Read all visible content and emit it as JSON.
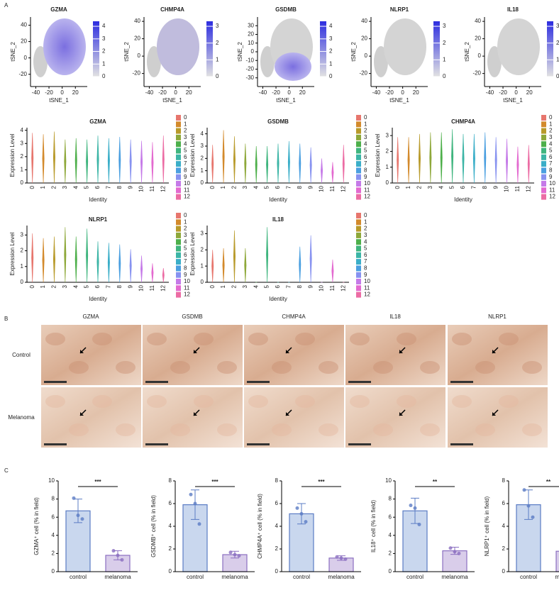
{
  "panel_labels": [
    "A",
    "B",
    "C"
  ],
  "tsne": {
    "x_label": "tSNE_1",
    "y_label": "tSNE_2",
    "plots": [
      {
        "title": "GZMA",
        "xlim": [
          -48,
          38
        ],
        "ylim": [
          -35,
          50
        ],
        "xticks": [
          -40,
          -20,
          0,
          20
        ],
        "yticks": [
          -20,
          0,
          20,
          40
        ],
        "colorlim": [
          0,
          4.4
        ],
        "color_ticks": [
          0,
          1,
          2,
          3,
          4
        ]
      },
      {
        "title": "CHMP4A",
        "xlim": [
          -48,
          38
        ],
        "ylim": [
          -35,
          45
        ],
        "xticks": [
          -40,
          -20,
          0,
          20
        ],
        "yticks": [
          -20,
          0,
          20,
          40
        ],
        "colorlim": [
          0,
          3.3
        ],
        "color_ticks": [
          0,
          1,
          2,
          3
        ]
      },
      {
        "title": "GSDMB",
        "xlim": [
          -48,
          38
        ],
        "ylim": [
          -40,
          40
        ],
        "xticks": [
          -40,
          -20,
          0,
          20
        ],
        "yticks": [
          -30,
          -20,
          -10,
          0,
          10,
          20,
          30
        ],
        "colorlim": [
          0,
          4.4
        ],
        "color_ticks": [
          0,
          1,
          2,
          3,
          4
        ]
      },
      {
        "title": "NLRP1",
        "xlim": [
          -48,
          38
        ],
        "ylim": [
          -35,
          45
        ],
        "xticks": [
          -40,
          -20,
          0,
          20
        ],
        "yticks": [
          -20,
          0,
          20,
          40
        ],
        "colorlim": [
          0,
          3.3
        ],
        "color_ticks": [
          0,
          1,
          2,
          3
        ]
      },
      {
        "title": "IL18",
        "xlim": [
          -48,
          38
        ],
        "ylim": [
          -35,
          45
        ],
        "xticks": [
          -40,
          -20,
          0,
          20
        ],
        "yticks": [
          -20,
          0,
          20,
          40
        ],
        "colorlim": [
          0,
          3.3
        ],
        "color_ticks": [
          0,
          1,
          2,
          3
        ]
      }
    ]
  },
  "violin": {
    "x_label": "Identity",
    "y_label": "Expression Level",
    "clusters": [
      "0",
      "1",
      "2",
      "3",
      "4",
      "5",
      "6",
      "7",
      "8",
      "9",
      "10",
      "11",
      "12"
    ],
    "colors": [
      "#e7766d",
      "#d38a2c",
      "#b89a2a",
      "#8ea83a",
      "#4daf4a",
      "#3fb57e",
      "#3cb5a6",
      "#3aaec8",
      "#4a9fe0",
      "#8792f0",
      "#c57ae8",
      "#e36ad0",
      "#ec6ca4"
    ],
    "plots": [
      {
        "title": "GZMA",
        "ylim": [
          0,
          4.2
        ],
        "yticks": [
          0,
          1,
          2,
          3,
          4
        ],
        "max_values": [
          3.8,
          3.7,
          3.9,
          3.3,
          3.4,
          3.3,
          3.6,
          3.4,
          3.5,
          3.3,
          3.2,
          3.1,
          3.6
        ]
      },
      {
        "title": "GSDMB",
        "ylim": [
          0,
          4.5
        ],
        "yticks": [
          0,
          1,
          2,
          3,
          4
        ],
        "max_values": [
          3.1,
          4.3,
          3.8,
          3.2,
          3.0,
          3.0,
          3.2,
          3.4,
          3.2,
          2.9,
          2.0,
          1.7,
          3.1
        ]
      },
      {
        "title": "CHMP4A",
        "ylim": [
          0,
          3.5
        ],
        "yticks": [
          0,
          1,
          2,
          3
        ],
        "max_values": [
          2.9,
          2.9,
          3.1,
          3.2,
          3.2,
          3.4,
          3.1,
          3.1,
          3.2,
          2.9,
          2.8,
          2.3,
          2.4
        ]
      },
      {
        "title": "NLRP1",
        "ylim": [
          0,
          3.6
        ],
        "yticks": [
          0,
          1,
          2,
          3
        ],
        "max_values": [
          3.1,
          2.8,
          2.9,
          3.5,
          2.9,
          3.4,
          2.6,
          2.5,
          2.4,
          2.1,
          1.7,
          1.2,
          0.9
        ]
      },
      {
        "title": "IL18",
        "ylim": [
          0,
          3.5
        ],
        "yticks": [
          0,
          1,
          2,
          3
        ],
        "max_values": [
          2.0,
          2.1,
          3.2,
          2.1,
          0,
          3.4,
          0,
          0,
          2.2,
          2.9,
          0,
          1.4,
          0
        ]
      }
    ]
  },
  "ihc": {
    "genes": [
      "GZMA",
      "GSDMB",
      "CHMP4A",
      "IL18",
      "NLRP1"
    ],
    "rows": [
      "Control",
      "Melanoma"
    ]
  },
  "chart_data": [
    {
      "type": "bar",
      "y_label": "GZMA⁺ cell (% in field)",
      "categories": [
        "control",
        "melanoma"
      ],
      "values": [
        6.7,
        1.8
      ],
      "errors": [
        1.3,
        0.5
      ],
      "points": [
        [
          8.1,
          6.2,
          5.8
        ],
        [
          2.3,
          1.8,
          1.3
        ]
      ],
      "colors": [
        "#c9d7ee",
        "#d9cdea"
      ],
      "stroke_colors": [
        "#5b7cc4",
        "#8b6fc0"
      ],
      "ylim": [
        0,
        10
      ],
      "yticks": [
        0,
        2,
        4,
        6,
        8,
        10
      ],
      "significance": "***"
    },
    {
      "type": "bar",
      "y_label": "GSDMB⁺ cell (% in field)",
      "categories": [
        "control",
        "melanoma"
      ],
      "values": [
        5.9,
        1.5
      ],
      "errors": [
        1.3,
        0.3
      ],
      "points": [
        [
          6.8,
          6.0,
          4.2
        ],
        [
          1.7,
          1.5,
          1.4
        ]
      ],
      "colors": [
        "#c9d7ee",
        "#d9cdea"
      ],
      "stroke_colors": [
        "#5b7cc4",
        "#8b6fc0"
      ],
      "ylim": [
        0,
        8
      ],
      "yticks": [
        0,
        2,
        4,
        6,
        8
      ],
      "significance": "***"
    },
    {
      "type": "bar",
      "y_label": "CHMP4A⁺ cell (% in field)",
      "categories": [
        "control",
        "melanoma"
      ],
      "values": [
        5.1,
        1.2
      ],
      "errors": [
        0.9,
        0.2
      ],
      "points": [
        [
          5.6,
          5.1,
          4.4
        ],
        [
          1.3,
          1.2,
          1.1
        ]
      ],
      "colors": [
        "#c9d7ee",
        "#d9cdea"
      ],
      "stroke_colors": [
        "#5b7cc4",
        "#8b6fc0"
      ],
      "ylim": [
        0,
        8
      ],
      "yticks": [
        0,
        2,
        4,
        6,
        8
      ],
      "significance": "***"
    },
    {
      "type": "bar",
      "y_label": "IL18⁺ cell (% in field)",
      "categories": [
        "control",
        "melanoma"
      ],
      "values": [
        6.7,
        2.3
      ],
      "errors": [
        1.4,
        0.4
      ],
      "points": [
        [
          7.3,
          7.0,
          5.2
        ],
        [
          2.6,
          2.2,
          2.0
        ]
      ],
      "colors": [
        "#c9d7ee",
        "#d9cdea"
      ],
      "stroke_colors": [
        "#5b7cc4",
        "#8b6fc0"
      ],
      "ylim": [
        0,
        10
      ],
      "yticks": [
        0,
        2,
        4,
        6,
        8,
        10
      ],
      "significance": "**"
    },
    {
      "type": "bar",
      "y_label": "NLRP1⁺ cell (% in field)",
      "categories": [
        "control",
        "melanoma"
      ],
      "values": [
        5.9,
        1.8
      ],
      "errors": [
        1.3,
        0.3
      ],
      "points": [
        [
          7.2,
          5.8,
          4.8
        ],
        [
          2.0,
          1.9,
          1.6
        ]
      ],
      "colors": [
        "#c9d7ee",
        "#d9cdea"
      ],
      "stroke_colors": [
        "#5b7cc4",
        "#8b6fc0"
      ],
      "ylim": [
        0,
        8
      ],
      "yticks": [
        0,
        2,
        4,
        6,
        8
      ],
      "significance": "**"
    }
  ]
}
